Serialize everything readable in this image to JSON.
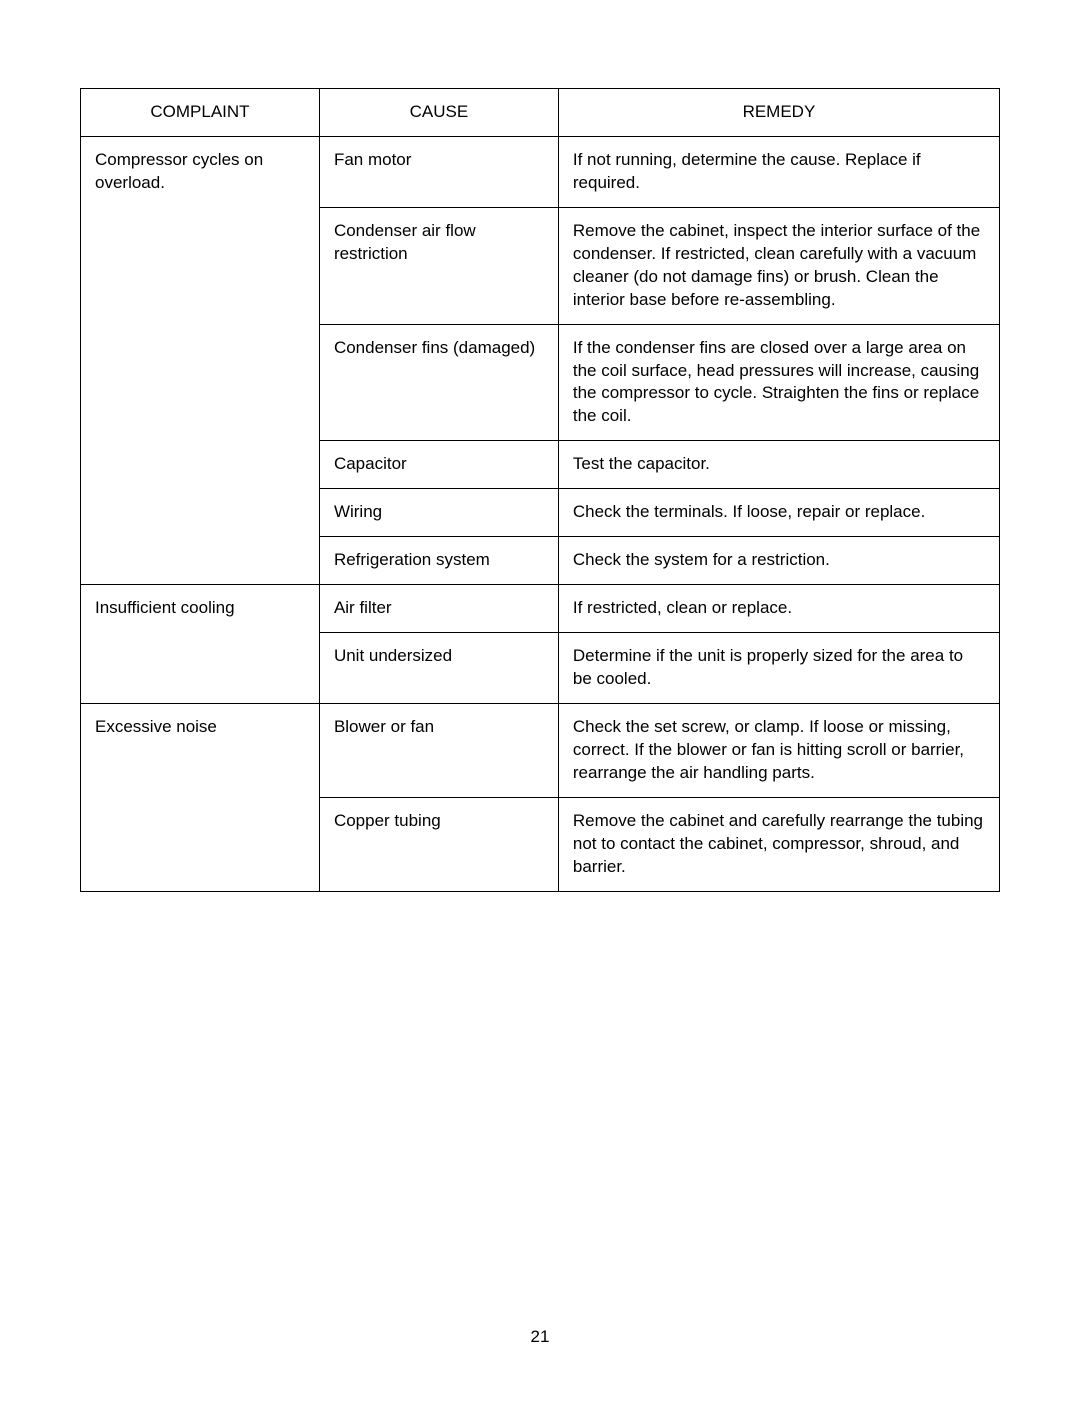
{
  "table": {
    "headers": {
      "complaint": "COMPLAINT",
      "cause": "CAUSE",
      "remedy": "REMEDY"
    },
    "rows": [
      {
        "complaint": "Compressor cycles on overload.",
        "cause": "Fan motor",
        "remedy": "If not running, determine the cause. Replace if required."
      },
      {
        "complaint": "",
        "cause": "Condenser air flow restriction",
        "remedy": "Remove the cabinet, inspect the interior surface of the condenser. If restricted, clean carefully with a vacuum cleaner (do not damage fins) or brush. Clean the interior base before re-assembling."
      },
      {
        "complaint": "",
        "cause": "Condenser fins (damaged)",
        "remedy": "If the condenser fins are closed over a large area on the coil surface, head pressures will increase, causing the compressor to cycle. Straighten the fins or replace the coil."
      },
      {
        "complaint": "",
        "cause": "Capacitor",
        "remedy": "Test the capacitor."
      },
      {
        "complaint": "",
        "cause": "Wiring",
        "remedy": "Check the terminals. If loose, repair or replace."
      },
      {
        "complaint": "",
        "cause": "Refrigeration system",
        "remedy": "Check the system for a restriction."
      },
      {
        "complaint": "Insufficient cooling",
        "cause": "Air filter",
        "remedy": "If restricted, clean or replace."
      },
      {
        "complaint": "",
        "cause": "Unit undersized",
        "remedy": "Determine if the unit is properly sized for the area to be cooled."
      },
      {
        "complaint": "Excessive noise",
        "cause": "Blower or fan",
        "remedy": "Check the set screw, or clamp. If loose or missing, correct. If the blower or fan is hitting scroll or barrier, rearrange the air handling parts."
      },
      {
        "complaint": "",
        "cause": "Copper tubing",
        "remedy": "Remove the cabinet and carefully rearrange the tubing not to contact the cabinet, compressor, shroud, and barrier."
      }
    ]
  },
  "page_number": "21"
}
